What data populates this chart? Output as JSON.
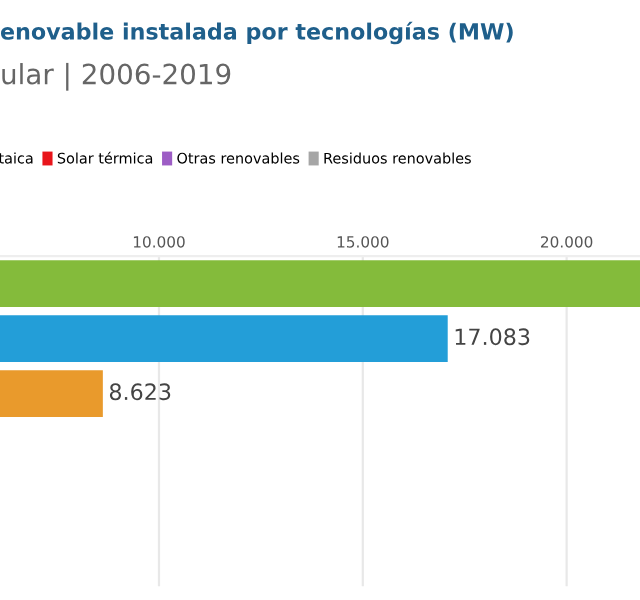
{
  "chart_data": {
    "type": "bar",
    "orientation": "horizontal",
    "title": "enovable instalada por tecnologías (MW)",
    "subtitle": "ular | 2006-2019",
    "categories": [
      null,
      null,
      null,
      null,
      null,
      null
    ],
    "series": [
      {
        "color": "#84bb3b",
        "values": [
          21800,
          null,
          null,
          null,
          null,
          null
        ],
        "value_labels": [
          null,
          null,
          null,
          null,
          null,
          null
        ]
      },
      {
        "color": "#239ed8",
        "values": [
          null,
          17083,
          null,
          null,
          null,
          null
        ],
        "value_labels": [
          null,
          "17.083",
          null,
          null,
          null,
          null
        ]
      },
      {
        "name": "taica",
        "color": "#e99a2c",
        "values": [
          null,
          null,
          8623,
          null,
          null,
          null
        ],
        "value_labels": [
          null,
          null,
          "8.623",
          null,
          null,
          null
        ]
      },
      {
        "name": "Solar térmica",
        "color": "#e8151b",
        "values": [
          null,
          null,
          null,
          null,
          null,
          null
        ]
      },
      {
        "name": "Otras renovables",
        "color": "#9d5dc5",
        "values": [
          null,
          null,
          null,
          null,
          null,
          null
        ]
      },
      {
        "name": "Residuos renovables",
        "color": "#a6a6a6",
        "values": [
          null,
          null,
          null,
          null,
          null,
          null
        ]
      }
    ],
    "xlim": [
      6100,
      21800
    ],
    "xticks": [
      {
        "value": 10000,
        "label": "10.000"
      },
      {
        "value": 15000,
        "label": "15.000"
      },
      {
        "value": 20000,
        "label": "20.000"
      }
    ],
    "grid": "x",
    "legend": "top",
    "tick_labels": "x"
  }
}
